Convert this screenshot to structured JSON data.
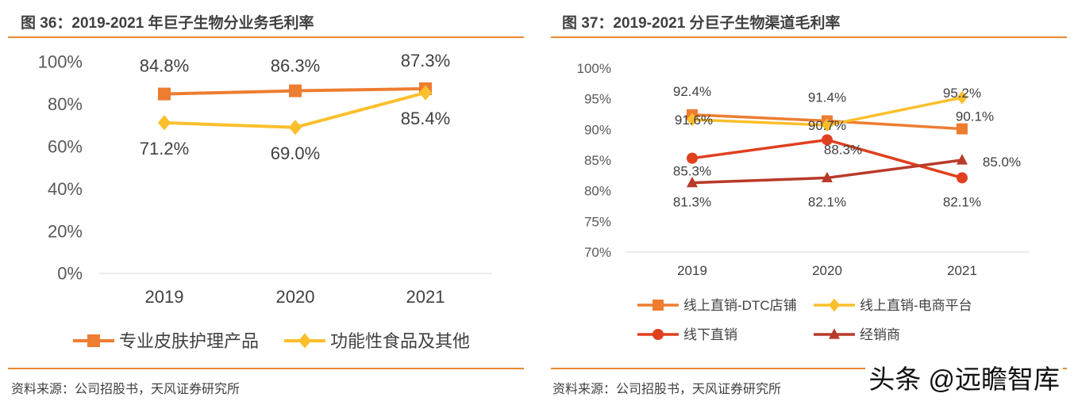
{
  "chart_data": [
    {
      "type": "line",
      "title": "图 36：2019-2021 年巨子生物分业务毛利率",
      "categories": [
        "2019",
        "2020",
        "2021"
      ],
      "ylim": [
        0,
        100
      ],
      "yticks": [
        "0%",
        "20%",
        "40%",
        "60%",
        "80%",
        "100%"
      ],
      "ytick_values": [
        0,
        20,
        40,
        60,
        80,
        100
      ],
      "grid": false,
      "legend": "bottom",
      "series": [
        {
          "name": "专业皮肤护理产品",
          "values": [
            84.8,
            86.3,
            87.3
          ],
          "labels": [
            "84.8%",
            "86.3%",
            "87.3%"
          ],
          "color": "#ed7d31",
          "marker": "square"
        },
        {
          "name": "功能性食品及其他",
          "values": [
            71.2,
            69.0,
            85.4
          ],
          "labels": [
            "71.2%",
            "69.0%",
            "85.4%"
          ],
          "color": "#fbbf2c",
          "marker": "diamond"
        }
      ],
      "source": "资料来源：公司招股书，天风证券研究所"
    },
    {
      "type": "line",
      "title": "图 37：2019-2021 分巨子生物渠道毛利率",
      "categories": [
        "2019",
        "2020",
        "2021"
      ],
      "ylim": [
        70,
        100
      ],
      "yticks": [
        "70%",
        "75%",
        "80%",
        "85%",
        "90%",
        "95%",
        "100%"
      ],
      "ytick_values": [
        70,
        75,
        80,
        85,
        90,
        95,
        100
      ],
      "grid": false,
      "legend": "bottom",
      "series": [
        {
          "name": "线上直销-DTC店铺",
          "values": [
            92.4,
            91.4,
            90.1
          ],
          "labels": [
            "92.4%",
            "91.4%",
            "90.1%"
          ],
          "color": "#ed7d31",
          "marker": "square"
        },
        {
          "name": "线上直销-电商平台",
          "values": [
            91.6,
            90.7,
            95.2
          ],
          "labels": [
            "91.6%",
            "90.7%",
            "95.2%"
          ],
          "color": "#fbbf2c",
          "marker": "diamond"
        },
        {
          "name": "线下直销",
          "values": [
            85.3,
            88.3,
            82.1
          ],
          "labels": [
            "85.3%",
            "88.3%",
            "82.1%"
          ],
          "color": "#e0401f",
          "marker": "circle"
        },
        {
          "name": "经销商",
          "values": [
            81.3,
            82.1,
            85.0
          ],
          "labels": [
            "81.3%",
            "82.1%",
            "85.0%"
          ],
          "color": "#b83a28",
          "marker": "triangle"
        }
      ],
      "source": "资料来源：公司招股书，天风证券研究所"
    }
  ],
  "watermark": "头条 @远瞻智库"
}
